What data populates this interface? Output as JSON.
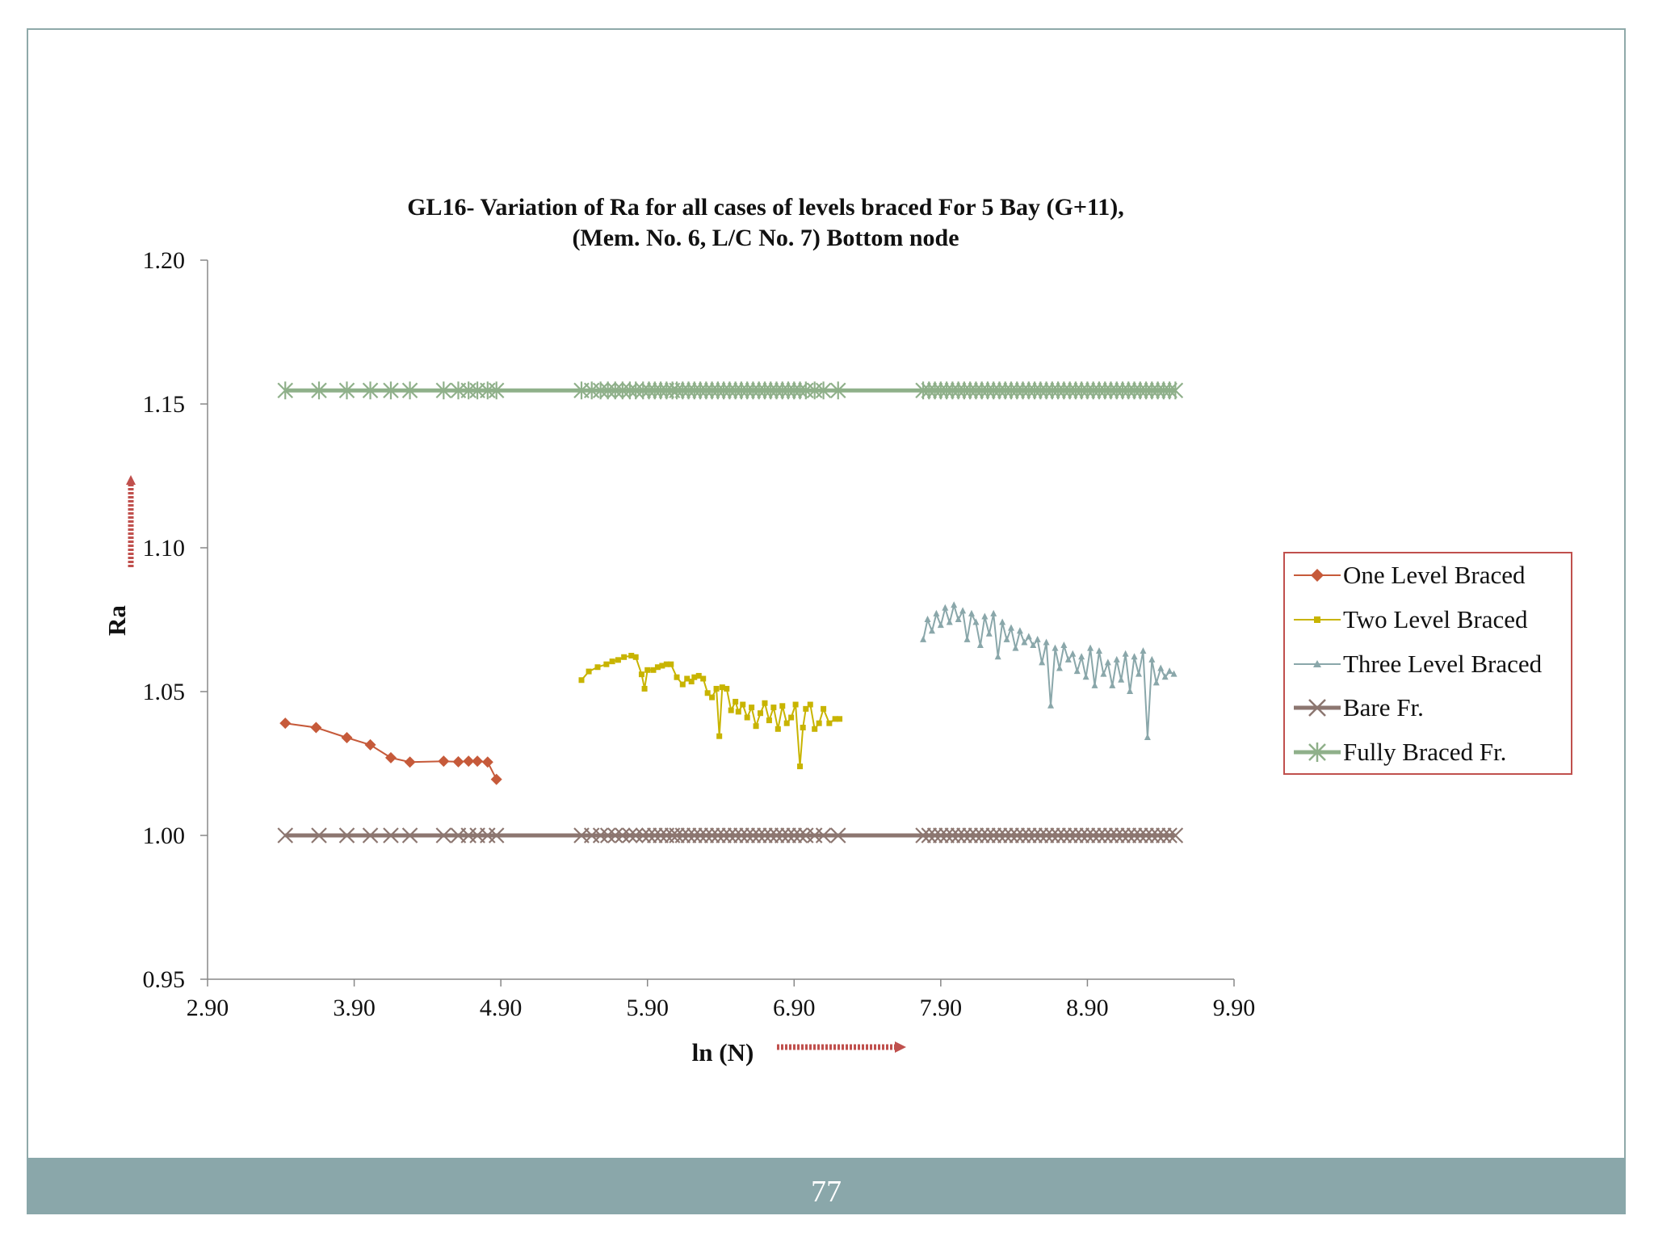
{
  "page": {
    "number": "77"
  },
  "colors": {
    "frame": "#8fa9a9",
    "footer": "#8aa7aa",
    "arrow": "#c0504d",
    "legend_border": "#c0504d"
  },
  "chart_data": {
    "type": "line",
    "title": "GL16- Variation of Ra for all cases of levels braced For 5 Bay (G+11),",
    "subtitle": "(Mem. No. 6, L/C No. 7) Bottom node",
    "xlabel": "ln (N)",
    "ylabel": "Ra",
    "xlim": [
      2.9,
      9.9
    ],
    "ylim": [
      0.95,
      1.2
    ],
    "xticks": [
      "2.90",
      "3.90",
      "4.90",
      "5.90",
      "6.90",
      "7.90",
      "8.90",
      "9.90"
    ],
    "yticks": [
      "0.95",
      "1.00",
      "1.05",
      "1.10",
      "1.15",
      "1.20"
    ],
    "legend_position": "right",
    "grid": false,
    "series": [
      {
        "name": "One Level Braced",
        "color": "#c65a3a",
        "marker": "diamond",
        "x": [
          3.43,
          3.64,
          3.85,
          4.01,
          4.15,
          4.28,
          4.51,
          4.61,
          4.68,
          4.74,
          4.81,
          4.87
        ],
        "y": [
          1.039,
          1.0375,
          1.034,
          1.0315,
          1.027,
          1.0255,
          1.0258,
          1.0256,
          1.0258,
          1.0258,
          1.0255,
          1.0195
        ]
      },
      {
        "name": "Two Level Braced",
        "color": "#c8b400",
        "marker": "square",
        "x": [
          5.45,
          5.5,
          5.56,
          5.62,
          5.66,
          5.7,
          5.74,
          5.79,
          5.82,
          5.86,
          5.88,
          5.9,
          5.94,
          5.97,
          6.0,
          6.03,
          6.06,
          6.1,
          6.14,
          6.17,
          6.2,
          6.22,
          6.25,
          6.28,
          6.31,
          6.34,
          6.37,
          6.39,
          6.41,
          6.44,
          6.47,
          6.5,
          6.52,
          6.55,
          6.58,
          6.61,
          6.64,
          6.67,
          6.7,
          6.73,
          6.76,
          6.79,
          6.82,
          6.85,
          6.88,
          6.91,
          6.94,
          6.96,
          6.98,
          7.01,
          7.04,
          7.07,
          7.1,
          7.14,
          7.18,
          7.21
        ],
        "y": [
          1.054,
          1.057,
          1.0585,
          1.0595,
          1.0605,
          1.061,
          1.062,
          1.0625,
          1.062,
          1.056,
          1.051,
          1.0575,
          1.0575,
          1.0585,
          1.059,
          1.0595,
          1.0595,
          1.055,
          1.0525,
          1.0545,
          1.0535,
          1.055,
          1.0555,
          1.0545,
          1.0495,
          1.048,
          1.051,
          1.0345,
          1.0515,
          1.051,
          1.0435,
          1.0465,
          1.043,
          1.0455,
          1.041,
          1.0445,
          1.038,
          1.0425,
          1.046,
          1.04,
          1.0445,
          1.037,
          1.045,
          1.039,
          1.041,
          1.0455,
          1.024,
          1.0375,
          1.044,
          1.0455,
          1.037,
          1.039,
          1.044,
          1.039,
          1.0405,
          1.0405
        ]
      },
      {
        "name": "Three Level Braced",
        "color": "#8aa7aa",
        "marker": "triangle",
        "x": [
          7.78,
          7.81,
          7.84,
          7.87,
          7.9,
          7.93,
          7.96,
          7.99,
          8.02,
          8.05,
          8.08,
          8.11,
          8.14,
          8.17,
          8.2,
          8.23,
          8.26,
          8.29,
          8.32,
          8.35,
          8.38,
          8.41,
          8.44,
          8.47,
          8.5,
          8.53,
          8.56,
          8.59,
          8.62,
          8.65,
          8.68,
          8.71,
          8.74,
          8.77,
          8.8,
          8.83,
          8.86,
          8.89,
          8.92,
          8.95,
          8.98,
          9.01,
          9.04,
          9.07,
          9.1,
          9.13,
          9.16,
          9.19,
          9.22,
          9.25,
          9.28,
          9.31,
          9.34,
          9.37,
          9.4,
          9.43,
          9.46,
          9.49
        ],
        "y": [
          1.068,
          1.075,
          1.071,
          1.077,
          1.073,
          1.079,
          1.074,
          1.08,
          1.075,
          1.078,
          1.068,
          1.077,
          1.074,
          1.066,
          1.076,
          1.07,
          1.077,
          1.062,
          1.074,
          1.068,
          1.072,
          1.065,
          1.071,
          1.067,
          1.069,
          1.066,
          1.068,
          1.06,
          1.067,
          1.045,
          1.065,
          1.058,
          1.066,
          1.061,
          1.063,
          1.057,
          1.062,
          1.055,
          1.065,
          1.052,
          1.064,
          1.056,
          1.06,
          1.052,
          1.061,
          1.054,
          1.063,
          1.05,
          1.062,
          1.056,
          1.064,
          1.034,
          1.061,
          1.053,
          1.058,
          1.055,
          1.057,
          1.056
        ]
      },
      {
        "name": "Bare Fr.",
        "color": "#8c7670",
        "marker": "x",
        "x_start": 3.43,
        "x_end": 9.5,
        "y_value": 1.0,
        "x_markers": [
          3.43,
          3.66,
          3.85,
          4.01,
          4.15,
          4.28,
          4.51,
          4.61,
          4.68,
          4.74,
          4.81,
          4.87,
          5.45,
          5.52,
          5.58,
          5.63,
          5.68,
          5.73,
          5.78,
          5.82,
          5.87,
          5.91,
          5.95,
          5.99,
          6.03,
          6.07,
          6.1,
          6.14,
          6.18,
          6.22,
          6.26,
          6.3,
          6.34,
          6.38,
          6.42,
          6.46,
          6.5,
          6.54,
          6.58,
          6.62,
          6.66,
          6.7,
          6.74,
          6.78,
          6.82,
          6.86,
          6.9,
          6.94,
          6.98,
          7.04,
          7.1,
          7.2,
          7.78,
          7.82,
          7.86,
          7.9,
          7.94,
          7.98,
          8.02,
          8.06,
          8.1,
          8.14,
          8.18,
          8.22,
          8.26,
          8.3,
          8.34,
          8.38,
          8.42,
          8.46,
          8.5,
          8.54,
          8.58,
          8.62,
          8.66,
          8.7,
          8.74,
          8.78,
          8.82,
          8.86,
          8.9,
          8.94,
          8.98,
          9.02,
          9.06,
          9.1,
          9.14,
          9.18,
          9.22,
          9.26,
          9.3,
          9.34,
          9.38,
          9.42,
          9.46,
          9.5
        ]
      },
      {
        "name": "Fully Braced Fr.",
        "color": "#8fb08a",
        "marker": "star",
        "x_start": 3.43,
        "x_end": 9.5,
        "y_value": 1.1547,
        "x_markers": [
          3.43,
          3.66,
          3.85,
          4.01,
          4.15,
          4.28,
          4.51,
          4.61,
          4.68,
          4.74,
          4.81,
          4.87,
          5.45,
          5.52,
          5.58,
          5.63,
          5.68,
          5.73,
          5.78,
          5.82,
          5.87,
          5.91,
          5.95,
          5.99,
          6.03,
          6.07,
          6.1,
          6.14,
          6.18,
          6.22,
          6.26,
          6.3,
          6.34,
          6.38,
          6.42,
          6.46,
          6.5,
          6.54,
          6.58,
          6.62,
          6.66,
          6.7,
          6.74,
          6.78,
          6.82,
          6.86,
          6.9,
          6.94,
          6.98,
          7.04,
          7.1,
          7.2,
          7.78,
          7.82,
          7.86,
          7.9,
          7.94,
          7.98,
          8.02,
          8.06,
          8.1,
          8.14,
          8.18,
          8.22,
          8.26,
          8.3,
          8.34,
          8.38,
          8.42,
          8.46,
          8.5,
          8.54,
          8.58,
          8.62,
          8.66,
          8.7,
          8.74,
          8.78,
          8.82,
          8.86,
          8.9,
          8.94,
          8.98,
          9.02,
          9.06,
          9.1,
          9.14,
          9.18,
          9.22,
          9.26,
          9.3,
          9.34,
          9.38,
          9.42,
          9.46,
          9.5
        ]
      }
    ]
  }
}
